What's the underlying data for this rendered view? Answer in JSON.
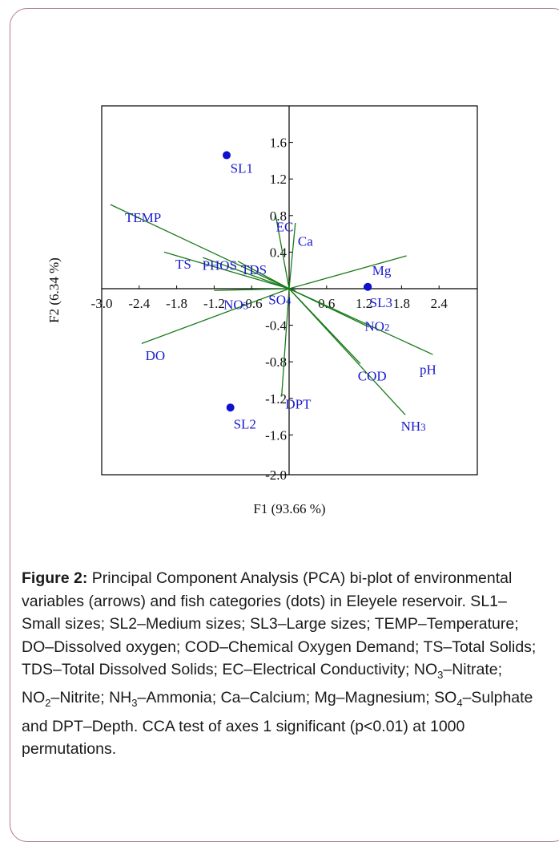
{
  "chart_data": {
    "type": "scatter",
    "subtype": "pca-biplot",
    "xlabel": "F1 (93.66 %)",
    "ylabel": "F2 (6.34 %)",
    "xlim": [
      -3.0,
      3.0
    ],
    "ylim": [
      -2.0,
      2.0
    ],
    "x_ticks": [
      "-3.0",
      "-2.4",
      "-1.8",
      "-1.2",
      "-0.6",
      "0.6",
      "1.2",
      "1.8",
      "2.4"
    ],
    "x_tick_values": [
      -3.0,
      -2.4,
      -1.8,
      -1.2,
      -0.6,
      0.6,
      1.2,
      1.8,
      2.4
    ],
    "y_ticks": [
      "1.6",
      "1.2",
      "0.8",
      "0.4",
      "-0.4",
      "-0.8",
      "-1.2",
      "-1.6",
      "-2.0"
    ],
    "y_tick_values": [
      1.6,
      1.2,
      0.8,
      0.4,
      -0.4,
      -0.8,
      -1.2,
      -1.6,
      -2.0
    ],
    "grid": false,
    "line_color": "#1a7a1a",
    "point_color": "#1010d0",
    "label_color": "#1a1acc",
    "vectors": [
      {
        "name": "TEMP",
        "x": -2.86,
        "y": 0.92
      },
      {
        "name": "TS",
        "x": -2.0,
        "y": 0.4
      },
      {
        "name": "PHOS",
        "x": -1.38,
        "y": 0.34
      },
      {
        "name": "TDS",
        "x": -0.82,
        "y": 0.3
      },
      {
        "name": "EC",
        "x": -0.22,
        "y": 0.82
      },
      {
        "name": "Ca",
        "x": 0.1,
        "y": 0.72
      },
      {
        "name": "Mg",
        "x": 1.88,
        "y": 0.36
      },
      {
        "name": "NO3",
        "x": -1.2,
        "y": -0.02
      },
      {
        "name": "SO4",
        "x": 0.1,
        "y": -0.02
      },
      {
        "name": "DO",
        "x": -2.36,
        "y": -0.6
      },
      {
        "name": "DPT",
        "x": -0.12,
        "y": -1.18
      },
      {
        "name": "NO2",
        "x": 1.28,
        "y": -0.42
      },
      {
        "name": "COD",
        "x": 1.14,
        "y": -0.82
      },
      {
        "name": "pH",
        "x": 2.3,
        "y": -0.72
      },
      {
        "name": "NH3",
        "x": 1.86,
        "y": -1.38
      }
    ],
    "points": [
      {
        "name": "SL1",
        "x": -1.0,
        "y": 1.46
      },
      {
        "name": "SL2",
        "x": -0.94,
        "y": -1.3
      },
      {
        "name": "SL3",
        "x": 1.26,
        "y": 0.02
      }
    ]
  },
  "caption": {
    "label": "Figure 2:",
    "text": " Principal Component Analysis (PCA) bi-plot of environmental variables (arrows) and fish categories (dots) in Eleyele reservoir. SL1–Small sizes; SL2–Medium sizes; SL3–Large sizes; TEMP–Temperature; DO–Dissolved oxygen; COD–Chemical Oxygen Demand; TS–Total Solids; TDS–Total Dissolved Solids; EC–Electrical Conductivity; NO3–Nitrate; NO2–Nitrite; NH3–Ammonia; Ca–Calcium; Mg–Magnesium; SO4–Sulphate and DPT–Depth. CCA test of axes 1 significant (p<0.01) at 1000 permutations."
  }
}
